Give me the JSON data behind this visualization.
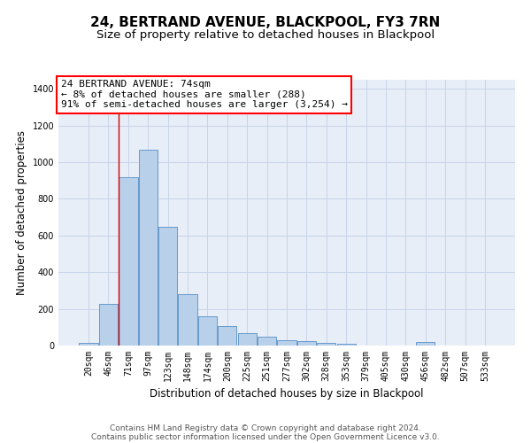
{
  "title1": "24, BERTRAND AVENUE, BLACKPOOL, FY3 7RN",
  "title2": "Size of property relative to detached houses in Blackpool",
  "xlabel": "Distribution of detached houses by size in Blackpool",
  "ylabel": "Number of detached properties",
  "categories": [
    "20sqm",
    "46sqm",
    "71sqm",
    "97sqm",
    "123sqm",
    "148sqm",
    "174sqm",
    "200sqm",
    "225sqm",
    "251sqm",
    "277sqm",
    "302sqm",
    "328sqm",
    "353sqm",
    "379sqm",
    "405sqm",
    "430sqm",
    "456sqm",
    "482sqm",
    "507sqm",
    "533sqm"
  ],
  "values": [
    15,
    225,
    920,
    1070,
    648,
    280,
    160,
    108,
    70,
    48,
    30,
    25,
    15,
    10,
    0,
    0,
    0,
    18,
    0,
    0,
    0
  ],
  "bar_color": "#b8d0ea",
  "bar_edge_color": "#6699cc",
  "annotation_box_text": "24 BERTRAND AVENUE: 74sqm\n← 8% of detached houses are smaller (288)\n91% of semi-detached houses are larger (3,254) →",
  "red_line_color": "#cc0000",
  "ylim": [
    0,
    1450
  ],
  "yticks": [
    0,
    200,
    400,
    600,
    800,
    1000,
    1200,
    1400
  ],
  "grid_color": "#c8d4e8",
  "background_color": "#e8eef8",
  "footer1": "Contains HM Land Registry data © Crown copyright and database right 2024.",
  "footer2": "Contains public sector information licensed under the Open Government Licence v3.0.",
  "title1_fontsize": 11,
  "title2_fontsize": 9.5,
  "axis_label_fontsize": 8.5,
  "tick_fontsize": 7,
  "annotation_fontsize": 8,
  "footer_fontsize": 6.5
}
